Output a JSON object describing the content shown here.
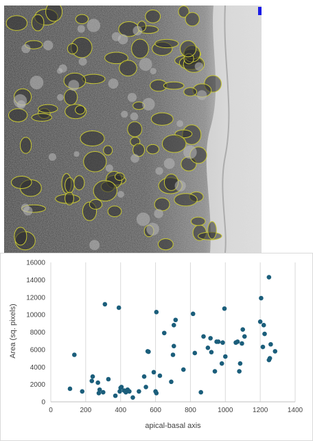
{
  "image": {
    "kind": "electron-micrograph",
    "outline_color": "#c8c832",
    "marker_color": "#1a1ae6"
  },
  "chart_data": {
    "type": "scatter",
    "title": "",
    "xlabel": "apical-basal axis",
    "ylabel": "Area (sq. pixels)",
    "xlim": [
      0,
      1400
    ],
    "ylim": [
      0,
      16000
    ],
    "xticks": [
      0,
      200,
      400,
      600,
      800,
      1000,
      1200,
      1400
    ],
    "yticks": [
      0,
      2000,
      4000,
      6000,
      8000,
      10000,
      12000,
      14000,
      16000
    ],
    "xtick_labels": [
      "0",
      "200",
      "400",
      "600",
      "800",
      "1000",
      "1200",
      "1400"
    ],
    "ytick_labels": [
      "0",
      "2000",
      "4000",
      "6000",
      "8000",
      "10000",
      "12000",
      "14000",
      "16000"
    ],
    "grid": "vertical",
    "legend": "none",
    "marker_color": "#1b5e7b",
    "x": [
      110,
      135,
      180,
      235,
      240,
      270,
      275,
      280,
      300,
      310,
      330,
      370,
      390,
      395,
      400,
      405,
      420,
      430,
      440,
      450,
      470,
      505,
      535,
      545,
      555,
      560,
      590,
      600,
      605,
      605,
      625,
      650,
      690,
      700,
      705,
      705,
      715,
      760,
      815,
      825,
      860,
      875,
      900,
      915,
      920,
      940,
      950,
      960,
      980,
      985,
      995,
      1000,
      1060,
      1070,
      1080,
      1085,
      1095,
      1100,
      1110,
      1200,
      1205,
      1215,
      1220,
      1225,
      1250,
      1250,
      1255,
      1260,
      1285
    ],
    "y": [
      1500,
      5400,
      1200,
      2400,
      2900,
      2200,
      1000,
      1400,
      1100,
      11200,
      2600,
      700,
      10800,
      1200,
      1600,
      1700,
      1300,
      1100,
      1400,
      1200,
      500,
      1200,
      2900,
      1700,
      5800,
      5750,
      3400,
      1200,
      10300,
      1000,
      3000,
      7900,
      2300,
      5400,
      8800,
      6400,
      9400,
      3700,
      10100,
      5600,
      1100,
      7500,
      6200,
      7300,
      5700,
      3500,
      6900,
      6900,
      4400,
      6800,
      10700,
      5200,
      6800,
      6900,
      3500,
      4400,
      6700,
      8300,
      7500,
      9200,
      11900,
      6300,
      8800,
      7800,
      14300,
      4800,
      5000,
      6600,
      5800
    ]
  }
}
